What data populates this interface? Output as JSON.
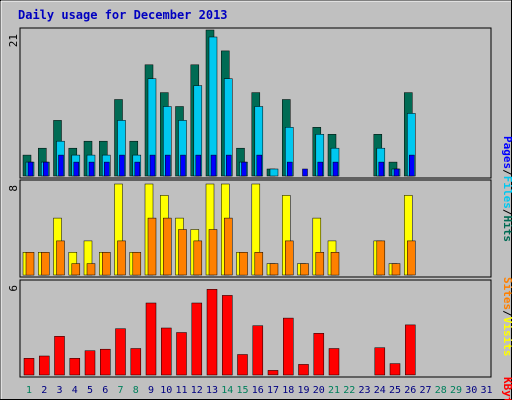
{
  "title": "Daily usage for December 2013",
  "colors": {
    "hits": "#006b54",
    "files": "#00c8f0",
    "pages": "#0000ff",
    "visits": "#ffff00",
    "sites": "#ff8000",
    "kbytes": "#ff0000",
    "title": "#0000c0",
    "panel": "#c0c0c0",
    "weekend_day": "#00805c",
    "weekday": "#000080"
  },
  "legend": {
    "top": {
      "pages": "Pages",
      "files": "Files",
      "hits": "Hits",
      "sep": "/"
    },
    "mid": {
      "sites": "Sites",
      "visits": "Visits",
      "sep": "/"
    },
    "bottom": {
      "kbytes": "KBytes"
    }
  },
  "chart_data": [
    {
      "type": "bar",
      "panel": "hits-files-pages",
      "ymax_label": "21",
      "ylim": [
        0,
        21
      ],
      "x": [
        1,
        2,
        3,
        4,
        5,
        6,
        7,
        8,
        9,
        10,
        11,
        12,
        13,
        14,
        15,
        16,
        17,
        18,
        19,
        20,
        21,
        22,
        23,
        24,
        25,
        26,
        27,
        28,
        29,
        30,
        31
      ],
      "series": [
        {
          "name": "Hits",
          "values": [
            3,
            4,
            8,
            4,
            5,
            5,
            11,
            5,
            16,
            12,
            10,
            16,
            21,
            18,
            4,
            12,
            1,
            11,
            0,
            7,
            6,
            0,
            0,
            6,
            2,
            12,
            0,
            0,
            0,
            0,
            0
          ]
        },
        {
          "name": "Files",
          "values": [
            2,
            2,
            5,
            3,
            3,
            3,
            8,
            3,
            14,
            10,
            8,
            13,
            20,
            14,
            2,
            10,
            1,
            7,
            0,
            6,
            4,
            0,
            0,
            4,
            1,
            9,
            0,
            0,
            0,
            0,
            0
          ]
        },
        {
          "name": "Pages",
          "values": [
            2,
            2,
            3,
            2,
            2,
            2,
            3,
            2,
            3,
            3,
            3,
            3,
            3,
            3,
            2,
            3,
            0,
            2,
            1,
            2,
            2,
            0,
            0,
            2,
            1,
            3,
            0,
            0,
            0,
            0,
            0
          ]
        }
      ]
    },
    {
      "type": "bar",
      "panel": "visits-sites",
      "ymax_label": "8",
      "ylim": [
        0,
        8
      ],
      "x": [
        1,
        2,
        3,
        4,
        5,
        6,
        7,
        8,
        9,
        10,
        11,
        12,
        13,
        14,
        15,
        16,
        17,
        18,
        19,
        20,
        21,
        22,
        23,
        24,
        25,
        26,
        27,
        28,
        29,
        30,
        31
      ],
      "series": [
        {
          "name": "Visits",
          "values": [
            2,
            2,
            5,
            2,
            3,
            2,
            8,
            2,
            8,
            7,
            5,
            4,
            8,
            8,
            2,
            8,
            1,
            7,
            1,
            5,
            3,
            0,
            0,
            3,
            1,
            7,
            0,
            0,
            0,
            0,
            0
          ]
        },
        {
          "name": "Sites",
          "values": [
            2,
            2,
            3,
            1,
            1,
            2,
            3,
            2,
            5,
            5,
            4,
            3,
            4,
            5,
            2,
            2,
            1,
            3,
            1,
            2,
            2,
            0,
            0,
            3,
            1,
            3,
            0,
            0,
            0,
            0,
            0
          ]
        }
      ]
    },
    {
      "type": "bar",
      "panel": "kbytes",
      "ymax_label": "6",
      "ylim": [
        0,
        6
      ],
      "x": [
        1,
        2,
        3,
        4,
        5,
        6,
        7,
        8,
        9,
        10,
        11,
        12,
        13,
        14,
        15,
        16,
        17,
        18,
        19,
        20,
        21,
        22,
        23,
        24,
        25,
        26,
        27,
        28,
        29,
        30,
        31
      ],
      "series": [
        {
          "name": "KBytes",
          "values": [
            1.1,
            1.25,
            2.55,
            1.1,
            1.6,
            1.7,
            3.05,
            1.75,
            4.75,
            3.1,
            2.8,
            4.75,
            5.65,
            5.25,
            1.35,
            3.25,
            0.3,
            3.75,
            0.7,
            2.75,
            1.75,
            0,
            0,
            1.8,
            0.75,
            3.3,
            0,
            0,
            0,
            0,
            0
          ]
        }
      ]
    }
  ],
  "days": [
    {
      "label": "1",
      "weekend": true
    },
    {
      "label": "2",
      "weekend": false
    },
    {
      "label": "3",
      "weekend": false
    },
    {
      "label": "4",
      "weekend": false
    },
    {
      "label": "5",
      "weekend": false
    },
    {
      "label": "6",
      "weekend": false
    },
    {
      "label": "7",
      "weekend": true
    },
    {
      "label": "8",
      "weekend": true
    },
    {
      "label": "9",
      "weekend": false
    },
    {
      "label": "10",
      "weekend": false
    },
    {
      "label": "11",
      "weekend": false
    },
    {
      "label": "12",
      "weekend": false
    },
    {
      "label": "13",
      "weekend": false
    },
    {
      "label": "14",
      "weekend": true
    },
    {
      "label": "15",
      "weekend": true
    },
    {
      "label": "16",
      "weekend": false
    },
    {
      "label": "17",
      "weekend": false
    },
    {
      "label": "18",
      "weekend": false
    },
    {
      "label": "19",
      "weekend": false
    },
    {
      "label": "20",
      "weekend": false
    },
    {
      "label": "21",
      "weekend": true
    },
    {
      "label": "22",
      "weekend": true
    },
    {
      "label": "23",
      "weekend": false
    },
    {
      "label": "24",
      "weekend": false
    },
    {
      "label": "25",
      "weekend": false
    },
    {
      "label": "26",
      "weekend": false
    },
    {
      "label": "27",
      "weekend": false
    },
    {
      "label": "28",
      "weekend": true
    },
    {
      "label": "29",
      "weekend": true
    },
    {
      "label": "30",
      "weekend": false
    },
    {
      "label": "31",
      "weekend": false
    }
  ]
}
